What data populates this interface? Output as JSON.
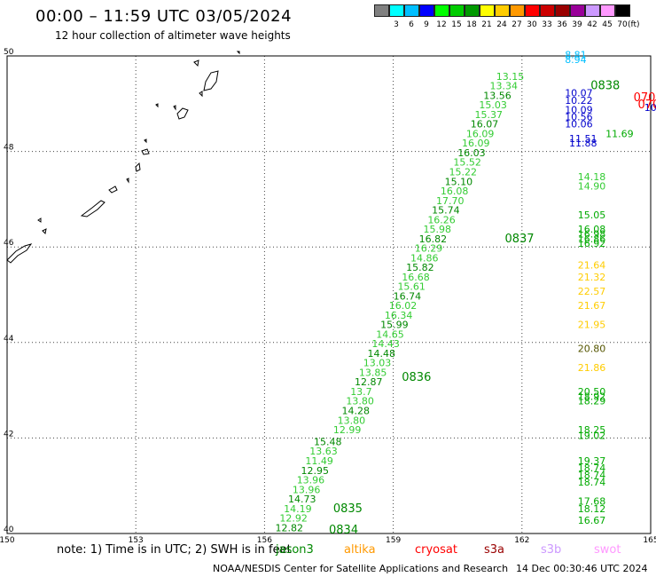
{
  "header": {
    "title": "00:00 – 11:59 UTC 03/05/2024",
    "subtitle": "12 hour collection of altimeter wave heights"
  },
  "legend": {
    "unit": "(ft)",
    "swatches": [
      {
        "color": "#808080",
        "label": ""
      },
      {
        "color": "#00ffff",
        "label": "3"
      },
      {
        "color": "#00bfff",
        "label": "6"
      },
      {
        "color": "#0000ff",
        "label": "9"
      },
      {
        "color": "#00ff00",
        "label": "12"
      },
      {
        "color": "#00cc00",
        "label": "15"
      },
      {
        "color": "#009900",
        "label": "18"
      },
      {
        "color": "#ffff00",
        "label": "21"
      },
      {
        "color": "#ffcc00",
        "label": "24"
      },
      {
        "color": "#ff9900",
        "label": "27"
      },
      {
        "color": "#ff0000",
        "label": "30"
      },
      {
        "color": "#cc0000",
        "label": "33"
      },
      {
        "color": "#990000",
        "label": "36"
      },
      {
        "color": "#990099",
        "label": "39"
      },
      {
        "color": "#cc99ff",
        "label": "42"
      },
      {
        "color": "#ff99ff",
        "label": "45"
      },
      {
        "color": "#000000",
        "label": "70"
      }
    ]
  },
  "map": {
    "lon_range": [
      150,
      165
    ],
    "lat_range": [
      40,
      50
    ],
    "lon_ticks": [
      "150",
      "153",
      "156",
      "159",
      "162",
      "165"
    ],
    "lat_ticks": [
      "40",
      "42",
      "44",
      "46",
      "48",
      "50"
    ],
    "grid": true
  },
  "track_main": {
    "color_light": "#33cc33",
    "color_dark": "#008800",
    "labels": [
      {
        "text": "12.82",
        "lon": 156.25,
        "lat": 40.05
      },
      {
        "text": "12.92",
        "lon": 156.35,
        "lat": 40.25
      },
      {
        "text": "14.19",
        "lon": 156.45,
        "lat": 40.45
      },
      {
        "text": "14.73",
        "lon": 156.55,
        "lat": 40.65
      },
      {
        "text": "13.96",
        "lon": 156.65,
        "lat": 40.85
      },
      {
        "text": "13.96",
        "lon": 156.75,
        "lat": 41.05
      },
      {
        "text": "12.95",
        "lon": 156.85,
        "lat": 41.25
      },
      {
        "text": "11.49",
        "lon": 156.95,
        "lat": 41.45
      },
      {
        "text": "13.63",
        "lon": 157.05,
        "lat": 41.65
      },
      {
        "text": "15.48",
        "lon": 157.15,
        "lat": 41.85
      },
      {
        "text": "12.99",
        "lon": 157.6,
        "lat": 42.1
      },
      {
        "text": "13.80",
        "lon": 157.7,
        "lat": 42.3
      },
      {
        "text": "14.28",
        "lon": 157.8,
        "lat": 42.5
      },
      {
        "text": "13.80",
        "lon": 157.9,
        "lat": 42.7
      },
      {
        "text": "13.7",
        "lon": 158.0,
        "lat": 42.9
      },
      {
        "text": "12.87",
        "lon": 158.1,
        "lat": 43.1
      },
      {
        "text": "13.85",
        "lon": 158.2,
        "lat": 43.3
      },
      {
        "text": "13.03",
        "lon": 158.3,
        "lat": 43.5
      },
      {
        "text": "14.48",
        "lon": 158.4,
        "lat": 43.7
      },
      {
        "text": "14.43",
        "lon": 158.5,
        "lat": 43.9
      },
      {
        "text": "14.65",
        "lon": 158.6,
        "lat": 44.1
      },
      {
        "text": "15.99",
        "lon": 158.7,
        "lat": 44.3
      },
      {
        "text": "16.34",
        "lon": 158.8,
        "lat": 44.5
      },
      {
        "text": "16.02",
        "lon": 158.9,
        "lat": 44.7
      },
      {
        "text": "16.74",
        "lon": 159.0,
        "lat": 44.9
      },
      {
        "text": "15.61",
        "lon": 159.1,
        "lat": 45.1
      },
      {
        "text": "16.68",
        "lon": 159.2,
        "lat": 45.3
      },
      {
        "text": "15.82",
        "lon": 159.3,
        "lat": 45.5
      },
      {
        "text": "14.86",
        "lon": 159.4,
        "lat": 45.7
      },
      {
        "text": "16.29",
        "lon": 159.5,
        "lat": 45.9
      },
      {
        "text": "16.82",
        "lon": 159.6,
        "lat": 46.1
      },
      {
        "text": "15.98",
        "lon": 159.7,
        "lat": 46.3
      },
      {
        "text": "16.26",
        "lon": 159.8,
        "lat": 46.5
      },
      {
        "text": "15.74",
        "lon": 159.9,
        "lat": 46.7
      },
      {
        "text": "17.70",
        "lon": 160.0,
        "lat": 46.9
      },
      {
        "text": "16.08",
        "lon": 160.1,
        "lat": 47.1
      },
      {
        "text": "15.10",
        "lon": 160.2,
        "lat": 47.3
      },
      {
        "text": "15.22",
        "lon": 160.3,
        "lat": 47.5
      },
      {
        "text": "15.52",
        "lon": 160.4,
        "lat": 47.7
      },
      {
        "text": "16.03",
        "lon": 160.5,
        "lat": 47.9
      },
      {
        "text": "16.09",
        "lon": 160.6,
        "lat": 48.1
      },
      {
        "text": "16.09",
        "lon": 160.7,
        "lat": 48.3
      },
      {
        "text": "16.07",
        "lon": 160.8,
        "lat": 48.5
      },
      {
        "text": "15.37",
        "lon": 160.9,
        "lat": 48.7
      },
      {
        "text": "15.03",
        "lon": 161.0,
        "lat": 48.9
      },
      {
        "text": "13.56",
        "lon": 161.1,
        "lat": 49.1
      },
      {
        "text": "13.34",
        "lon": 161.25,
        "lat": 49.3
      },
      {
        "text": "13.15",
        "lon": 161.4,
        "lat": 49.5
      }
    ],
    "time_labels": [
      {
        "text": "0834",
        "lon": 157.5,
        "lat": 40.0
      },
      {
        "text": "0835",
        "lon": 157.6,
        "lat": 40.45
      },
      {
        "text": "0836",
        "lon": 159.2,
        "lat": 43.2
      },
      {
        "text": "0837",
        "lon": 161.6,
        "lat": 46.1
      },
      {
        "text": "0838",
        "lon": 163.6,
        "lat": 49.3
      }
    ]
  },
  "track_east": {
    "labels": [
      {
        "text": "8.81",
        "lon": 163.0,
        "lat": 49.95,
        "color": "#00bfff"
      },
      {
        "text": "8.94",
        "lon": 163.0,
        "lat": 49.85,
        "color": "#00bfff"
      },
      {
        "text": "10.07",
        "lon": 163.0,
        "lat": 49.15,
        "color": "#0000cc"
      },
      {
        "text": "10.22",
        "lon": 163.0,
        "lat": 49.0,
        "color": "#0000cc"
      },
      {
        "text": "10.09",
        "lon": 163.0,
        "lat": 48.8,
        "color": "#0000cc"
      },
      {
        "text": "10.56",
        "lon": 163.0,
        "lat": 48.65,
        "color": "#0000cc"
      },
      {
        "text": "10.06",
        "lon": 163.0,
        "lat": 48.5,
        "color": "#0000cc"
      },
      {
        "text": "11.69",
        "lon": 163.95,
        "lat": 48.3,
        "color": "#00aa00"
      },
      {
        "text": "11.51",
        "lon": 163.1,
        "lat": 48.2,
        "color": "#0000cc"
      },
      {
        "text": "11.88",
        "lon": 163.1,
        "lat": 48.1,
        "color": "#0000cc"
      },
      {
        "text": "10.58",
        "lon": 164.85,
        "lat": 48.85,
        "color": "#0000cc"
      },
      {
        "text": "9.2",
        "lon": 165.45,
        "lat": 49.1,
        "color": "#0000cc"
      },
      {
        "text": "9",
        "lon": 165.7,
        "lat": 49.3,
        "color": "#0000cc"
      },
      {
        "text": "15.05",
        "lon": 163.3,
        "lat": 46.6,
        "color": "#00aa00"
      },
      {
        "text": "14.90",
        "lon": 163.3,
        "lat": 47.2,
        "color": "#33cc33"
      },
      {
        "text": "14.18",
        "lon": 163.3,
        "lat": 47.4,
        "color": "#33cc33"
      },
      {
        "text": "16.08",
        "lon": 163.3,
        "lat": 46.3,
        "color": "#00aa00"
      },
      {
        "text": "16.98",
        "lon": 163.3,
        "lat": 46.2,
        "color": "#00aa00"
      },
      {
        "text": "16.86",
        "lon": 163.3,
        "lat": 46.1,
        "color": "#00aa00"
      },
      {
        "text": "16.92",
        "lon": 163.3,
        "lat": 46.0,
        "color": "#00aa00"
      },
      {
        "text": "21.64",
        "lon": 163.3,
        "lat": 45.55,
        "color": "#ffcc00"
      },
      {
        "text": "21.32",
        "lon": 163.3,
        "lat": 45.3,
        "color": "#ffcc00"
      },
      {
        "text": "22.57",
        "lon": 163.3,
        "lat": 45.0,
        "color": "#ffcc00"
      },
      {
        "text": "21.67",
        "lon": 163.3,
        "lat": 44.7,
        "color": "#ffcc00"
      },
      {
        "text": "21.95",
        "lon": 163.3,
        "lat": 44.3,
        "color": "#ffcc00"
      },
      {
        "text": "20.80",
        "lon": 163.3,
        "lat": 43.8,
        "color": "#555500"
      },
      {
        "text": "21.86",
        "lon": 163.3,
        "lat": 43.4,
        "color": "#ffcc00"
      },
      {
        "text": "20.50",
        "lon": 163.3,
        "lat": 42.9,
        "color": "#00aa00"
      },
      {
        "text": "18.92",
        "lon": 163.3,
        "lat": 42.8,
        "color": "#00aa00"
      },
      {
        "text": "18.29",
        "lon": 163.3,
        "lat": 42.7,
        "color": "#00aa00"
      },
      {
        "text": "18.25",
        "lon": 163.3,
        "lat": 42.1,
        "color": "#00aa00"
      },
      {
        "text": "19.02",
        "lon": 163.3,
        "lat": 41.98,
        "color": "#00aa00"
      },
      {
        "text": "19.37",
        "lon": 163.3,
        "lat": 41.45,
        "color": "#00aa00"
      },
      {
        "text": "18.74",
        "lon": 163.3,
        "lat": 41.3,
        "color": "#00aa00"
      },
      {
        "text": "18.74",
        "lon": 163.3,
        "lat": 41.15,
        "color": "#00aa00"
      },
      {
        "text": "18.74",
        "lon": 163.3,
        "lat": 41.0,
        "color": "#00aa00"
      },
      {
        "text": "17.68",
        "lon": 163.3,
        "lat": 40.6,
        "color": "#00aa00"
      },
      {
        "text": "18.12",
        "lon": 163.3,
        "lat": 40.45,
        "color": "#00aa00"
      },
      {
        "text": "16.67",
        "lon": 163.3,
        "lat": 40.2,
        "color": "#00aa00"
      }
    ],
    "time_labels": [
      {
        "text": "0707",
        "lon": 164.6,
        "lat": 49.05,
        "color": "#ff0000"
      },
      {
        "text": "0706",
        "lon": 164.7,
        "lat": 48.9,
        "color": "#ff0000"
      },
      {
        "text": "0706",
        "lon": 165.5,
        "lat": 45.35,
        "color": "#ff0000"
      },
      {
        "text": "070",
        "lon": 165.5,
        "lat": 45.05,
        "color": "#ff0000"
      },
      {
        "text": "0",
        "lon": 166.2,
        "lat": 42.0,
        "color": "#ff0000"
      },
      {
        "text": "0",
        "lon": 166.2,
        "lat": 41.55,
        "color": "#ff0000"
      },
      {
        "text": "0",
        "lon": 166.2,
        "lat": 41.2,
        "color": "#ff0000"
      }
    ]
  },
  "footer": {
    "note": "note:  1) Time is in UTC; 2) SWH is in feet",
    "missions": [
      {
        "name": "jason3",
        "color": "#008800"
      },
      {
        "name": "altika",
        "color": "#ff9900"
      },
      {
        "name": "cryosat",
        "color": "#ff0000"
      },
      {
        "name": "s3a",
        "color": "#990000"
      },
      {
        "name": "s3b",
        "color": "#cc99ff"
      },
      {
        "name": "swot",
        "color": "#ff99ff"
      }
    ],
    "credit": "NOAA/NESDIS Center for Satellite Applications and Research",
    "timestamp": "14 Dec 00:30:46 UTC 2024"
  }
}
